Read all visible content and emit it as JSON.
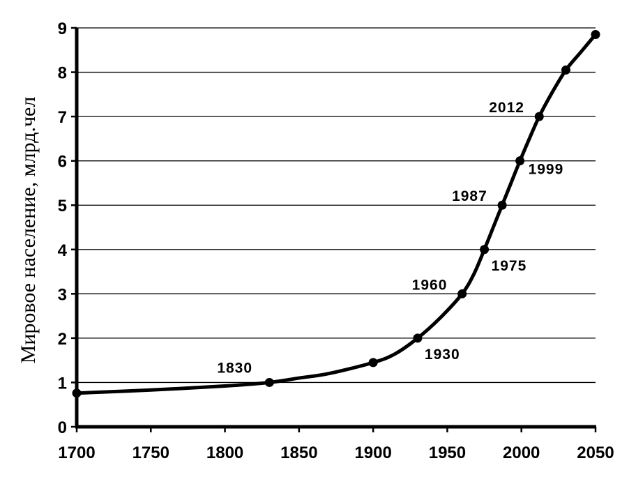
{
  "chart_data": {
    "type": "line",
    "ylabel": "Мировое население, млрд.чел",
    "xlabel": "",
    "xlim": [
      1700,
      2050
    ],
    "ylim": [
      0,
      9
    ],
    "x_ticks": [
      1700,
      1750,
      1800,
      1850,
      1900,
      1950,
      2000,
      2050
    ],
    "y_ticks": [
      0,
      1,
      2,
      3,
      4,
      5,
      6,
      7,
      8,
      9
    ],
    "grid": "horizontal",
    "series": [
      {
        "x": [
          1700,
          1750,
          1800,
          1830,
          1850,
          1870,
          1900,
          1915,
          1930,
          1945,
          1960,
          1968,
          1975,
          1981,
          1987,
          1993,
          1999,
          2006,
          2012,
          2020,
          2030,
          2040,
          2050
        ],
        "values": [
          0.76,
          0.83,
          0.92,
          1.0,
          1.1,
          1.2,
          1.45,
          1.65,
          2.0,
          2.45,
          3.0,
          3.45,
          4.0,
          4.5,
          5.0,
          5.5,
          6.0,
          6.55,
          7.0,
          7.5,
          8.05,
          8.45,
          8.85
        ]
      }
    ],
    "markers": [
      {
        "x": 1700,
        "y": 0.76
      },
      {
        "x": 1830,
        "y": 1.0
      },
      {
        "x": 1900,
        "y": 1.45
      },
      {
        "x": 1930,
        "y": 2.0
      },
      {
        "x": 1960,
        "y": 3.0
      },
      {
        "x": 1975,
        "y": 4.0
      },
      {
        "x": 1987,
        "y": 5.0
      },
      {
        "x": 1999,
        "y": 6.0
      },
      {
        "x": 2012,
        "y": 7.0
      },
      {
        "x": 2030,
        "y": 8.05
      },
      {
        "x": 2050,
        "y": 8.85
      }
    ],
    "annotations": [
      {
        "text": "1830",
        "x": 1830,
        "y": 1.0,
        "side": "above-left"
      },
      {
        "text": "1930",
        "x": 1930,
        "y": 2.0,
        "side": "below-right"
      },
      {
        "text": "1960",
        "x": 1960,
        "y": 3.0,
        "side": "left"
      },
      {
        "text": "1975",
        "x": 1975,
        "y": 4.0,
        "side": "below-right"
      },
      {
        "text": "1987",
        "x": 1987,
        "y": 5.0,
        "side": "left"
      },
      {
        "text": "1999",
        "x": 1999,
        "y": 6.0,
        "side": "right"
      },
      {
        "text": "2012",
        "x": 2012,
        "y": 7.0,
        "side": "left"
      }
    ]
  }
}
